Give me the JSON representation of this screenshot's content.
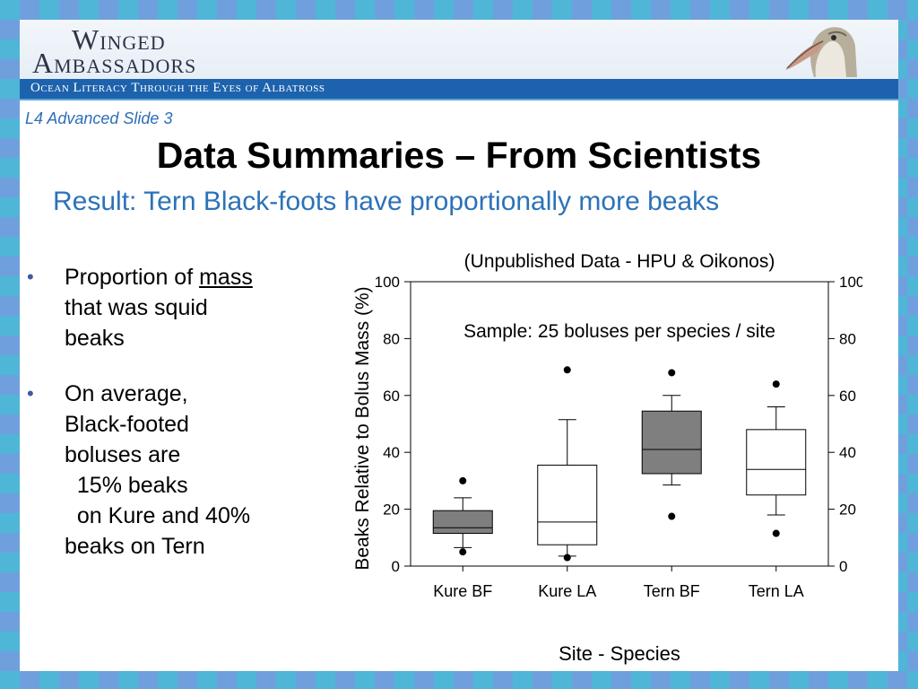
{
  "header": {
    "logo_line1": "Winged",
    "logo_line2": "Ambassadors",
    "tagline": "Ocean Literacy Through the Eyes of Albatross"
  },
  "slide_label": "L4 Advanced Slide 3",
  "title": "Data Summaries – From Scientists",
  "subtitle": "Result:  Tern Black-foots have proportionally more beaks",
  "bullets": [
    {
      "parts": [
        "Proportion of ",
        "mass"
      ],
      "lines": [
        "that was squid",
        "beaks"
      ]
    },
    {
      "lines": [
        "On average,",
        "Black-footed",
        "boluses are",
        "  15% beaks",
        "  on Kure and 40%",
        "beaks on Tern"
      ]
    }
  ],
  "colors": {
    "accent": "#2c72b8",
    "banner": "#1d62ad",
    "filled_box": "#7f7f7f"
  },
  "chart_data": {
    "type": "boxplot",
    "title": "(Unpublished Data - HPU & Oikonos)",
    "annotation": "Sample:  25 boluses per species / site",
    "xlabel": "Site - Species",
    "ylabel": "Beaks Relative to Bolus Mass (%)",
    "ylim": [
      0,
      100
    ],
    "yticks": [
      0,
      20,
      40,
      60,
      80,
      100
    ],
    "right_axis": true,
    "categories": [
      "Kure BF",
      "Kure LA",
      "Tern BF",
      "Tern LA"
    ],
    "boxes": [
      {
        "q1": 11.5,
        "median": 13.5,
        "q3": 19.5,
        "whisker_low": 6.5,
        "whisker_high": 24,
        "outliers": [
          5,
          30
        ],
        "filled": true
      },
      {
        "q1": 7.5,
        "median": 15.5,
        "q3": 35.5,
        "whisker_low": 3.5,
        "whisker_high": 51.5,
        "outliers": [
          3,
          69
        ],
        "filled": false
      },
      {
        "q1": 32.5,
        "median": 41,
        "q3": 54.5,
        "whisker_low": 28.5,
        "whisker_high": 60,
        "outliers": [
          17.5,
          68
        ],
        "filled": true
      },
      {
        "q1": 25,
        "median": 34,
        "q3": 48,
        "whisker_low": 18,
        "whisker_high": 56,
        "outliers": [
          11.5,
          64
        ],
        "filled": false
      }
    ]
  }
}
